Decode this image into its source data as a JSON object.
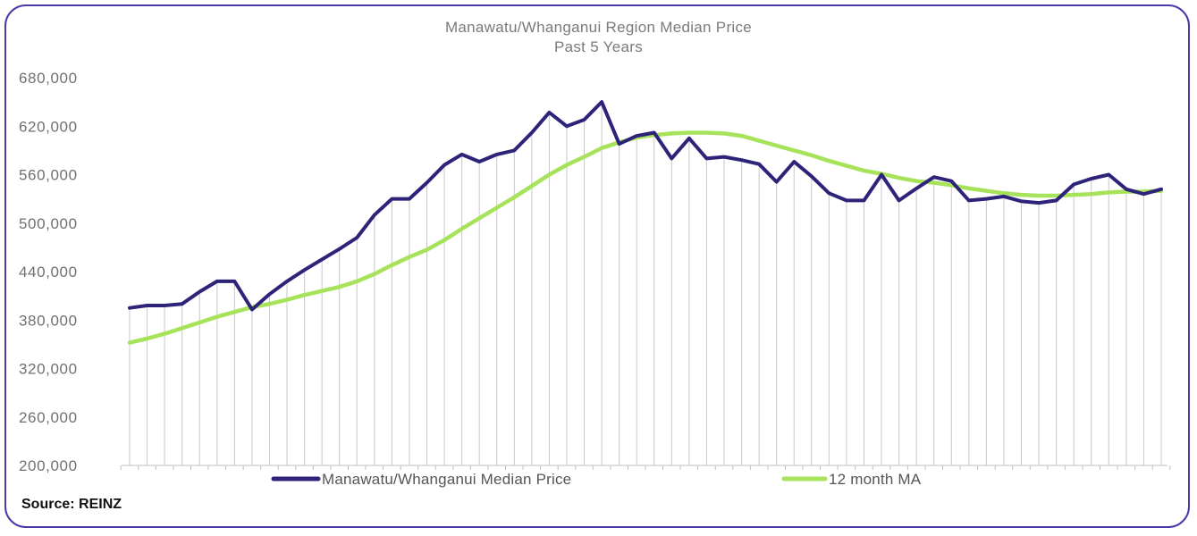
{
  "chart_data": {
    "type": "line",
    "title": "Manawatu/Whanganui Region Median Price",
    "subtitle": "Past 5 Years",
    "xlabel": "",
    "ylabel": "",
    "ylim": [
      200000,
      680000
    ],
    "yticks": [
      "200,000",
      "260,000",
      "320,000",
      "380,000",
      "440,000",
      "500,000",
      "560,000",
      "620,000",
      "680,000"
    ],
    "grid": "vertical drop lines",
    "legend": "bottom",
    "series": [
      {
        "name": "Manawatu/Whanganui Median Price",
        "color": "#2d2479",
        "values": [
          395000,
          398000,
          398000,
          400000,
          415000,
          428000,
          428000,
          393000,
          412000,
          428000,
          442000,
          455000,
          468000,
          482000,
          510000,
          530000,
          530000,
          550000,
          572000,
          585000,
          576000,
          585000,
          590000,
          612000,
          637000,
          620000,
          628000,
          650000,
          598000,
          608000,
          612000,
          580000,
          605000,
          580000,
          582000,
          578000,
          573000,
          551000,
          576000,
          558000,
          537000,
          528000,
          528000,
          560000,
          528000,
          543000,
          557000,
          552000,
          528000,
          530000,
          533000,
          527000,
          525000,
          528000,
          548000,
          555000,
          560000,
          542000,
          536000,
          542000
        ]
      },
      {
        "name": "12 month MA",
        "color": "#a7e35a",
        "values": [
          352000,
          357000,
          363000,
          370000,
          377000,
          384000,
          390000,
          396000,
          400000,
          405000,
          411000,
          416000,
          421000,
          428000,
          437000,
          448000,
          458000,
          467000,
          479000,
          493000,
          506000,
          519000,
          532000,
          546000,
          560000,
          572000,
          582000,
          593000,
          600000,
          606000,
          609000,
          611000,
          612000,
          612000,
          611000,
          608000,
          602000,
          596000,
          590000,
          584000,
          577000,
          571000,
          565000,
          561000,
          556000,
          552000,
          550000,
          547000,
          543000,
          540000,
          537000,
          535000,
          534000,
          534000,
          535000,
          536000,
          538000,
          539000,
          539000,
          540000
        ]
      }
    ]
  },
  "source": "Source: REINZ",
  "colors": {
    "frame": "#4a3aa6",
    "drop_line": "#c8c8c8",
    "axis": "#bfbfbf"
  }
}
